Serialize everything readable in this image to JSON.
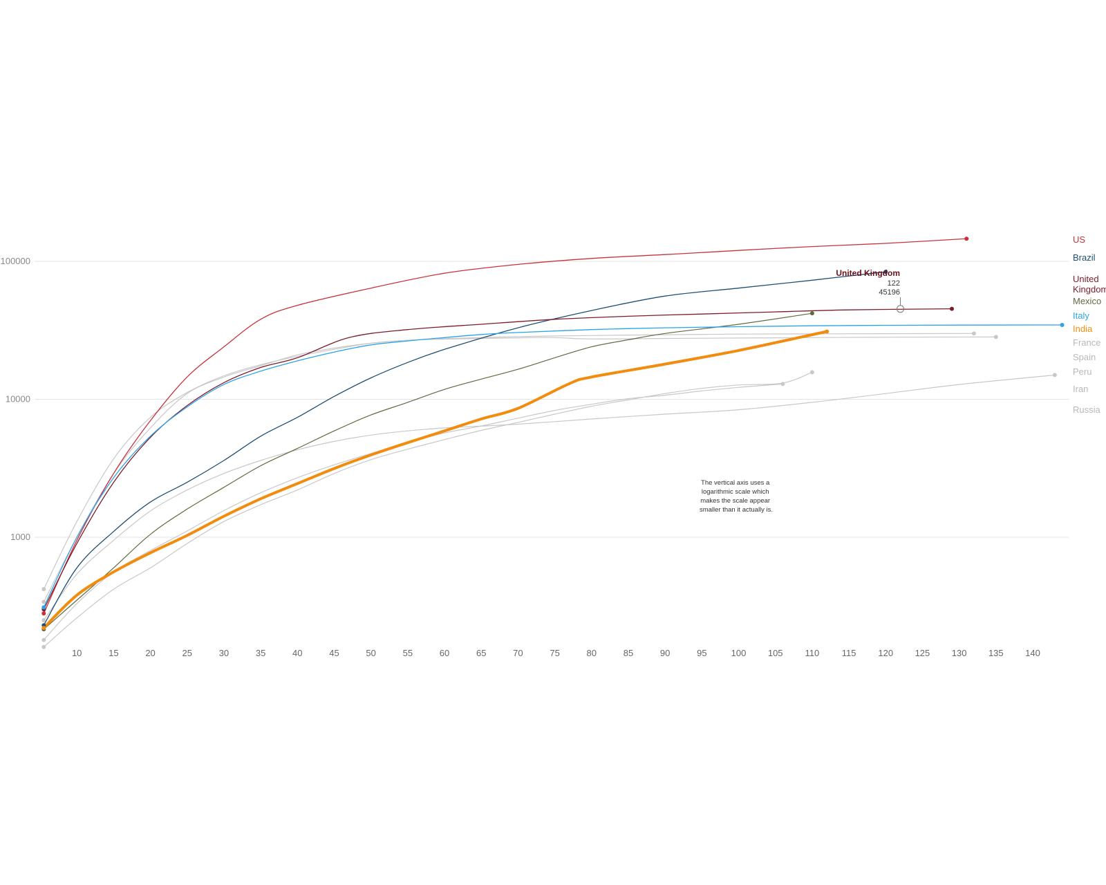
{
  "chart_data": {
    "type": "line",
    "title": "",
    "xlabel": "",
    "ylabel": "",
    "y_scale": "log",
    "ylim": [
      160,
      200000
    ],
    "xlim": [
      5,
      145
    ],
    "grid": true,
    "y_ticks": [
      "1000",
      "10000",
      "100000"
    ],
    "y_tick_values": [
      1000,
      10000,
      100000
    ],
    "x_ticks": [
      "10",
      "15",
      "20",
      "25",
      "30",
      "35",
      "40",
      "45",
      "50",
      "55",
      "60",
      "65",
      "70",
      "75",
      "80",
      "85",
      "90",
      "95",
      "100",
      "105",
      "110",
      "115",
      "120",
      "125",
      "130",
      "135",
      "140"
    ],
    "x_tick_values": [
      10,
      15,
      20,
      25,
      30,
      35,
      40,
      45,
      50,
      55,
      60,
      65,
      70,
      75,
      80,
      85,
      90,
      95,
      100,
      105,
      110,
      115,
      120,
      125,
      130,
      135,
      140
    ],
    "legend_placement": "right",
    "annotation": "The vertical axis uses a logarithmic scale which makes the scale appear smaller than it actually is.",
    "tooltip": {
      "country": "United Kingdom",
      "x": "122",
      "y": "45196",
      "x_value": 122,
      "y_value": 45196
    },
    "series": [
      {
        "name": "US",
        "color": "#c8323c",
        "highlight": true,
        "width": 1.3,
        "points": [
          [
            5.5,
            280
          ],
          [
            10,
            950
          ],
          [
            15,
            2900
          ],
          [
            20,
            7000
          ],
          [
            25,
            14500
          ],
          [
            30,
            24000
          ],
          [
            35,
            38000
          ],
          [
            40,
            48000
          ],
          [
            50,
            64000
          ],
          [
            60,
            82000
          ],
          [
            70,
            95000
          ],
          [
            80,
            105000
          ],
          [
            90,
            112000
          ],
          [
            100,
            120000
          ],
          [
            110,
            128000
          ],
          [
            120,
            135000
          ],
          [
            131,
            146000
          ]
        ]
      },
      {
        "name": "Brazil",
        "color": "#1e4e72",
        "highlight": true,
        "width": 1.3,
        "points": [
          [
            5.5,
            230
          ],
          [
            10,
            600
          ],
          [
            15,
            1100
          ],
          [
            20,
            1800
          ],
          [
            25,
            2500
          ],
          [
            30,
            3600
          ],
          [
            35,
            5400
          ],
          [
            40,
            7400
          ],
          [
            45,
            10500
          ],
          [
            50,
            14300
          ],
          [
            55,
            18500
          ],
          [
            60,
            23000
          ],
          [
            70,
            33000
          ],
          [
            80,
            44000
          ],
          [
            90,
            56000
          ],
          [
            100,
            64000
          ],
          [
            110,
            73000
          ],
          [
            120,
            84000
          ]
        ]
      },
      {
        "name": "United Kingdom",
        "color": "#7c1c2a",
        "highlight": true,
        "width": 1.3,
        "points": [
          [
            5.5,
            300
          ],
          [
            10,
            900
          ],
          [
            15,
            2500
          ],
          [
            20,
            5300
          ],
          [
            25,
            9000
          ],
          [
            30,
            13200
          ],
          [
            35,
            17000
          ],
          [
            40,
            20000
          ],
          [
            47,
            28000
          ],
          [
            55,
            32000
          ],
          [
            65,
            35000
          ],
          [
            75,
            38000
          ],
          [
            85,
            40000
          ],
          [
            95,
            41500
          ],
          [
            105,
            43000
          ],
          [
            115,
            44500
          ],
          [
            129,
            45300
          ]
        ]
      },
      {
        "name": "Mexico",
        "color": "#5f6a3e",
        "highlight": true,
        "width": 1.2,
        "points": [
          [
            5.5,
            215
          ],
          [
            10,
            350
          ],
          [
            15,
            600
          ],
          [
            20,
            1050
          ],
          [
            25,
            1600
          ],
          [
            30,
            2300
          ],
          [
            35,
            3300
          ],
          [
            40,
            4400
          ],
          [
            45,
            5900
          ],
          [
            50,
            7700
          ],
          [
            55,
            9500
          ],
          [
            60,
            11800
          ],
          [
            65,
            14000
          ],
          [
            70,
            16500
          ],
          [
            75,
            20000
          ],
          [
            80,
            24000
          ],
          [
            85,
            27000
          ],
          [
            90,
            30000
          ],
          [
            100,
            35000
          ],
          [
            110,
            42000
          ]
        ]
      },
      {
        "name": "Italy",
        "color": "#29a3e8",
        "highlight": true,
        "width": 1.3,
        "points": [
          [
            5.5,
            310
          ],
          [
            10,
            1000
          ],
          [
            15,
            2700
          ],
          [
            20,
            5400
          ],
          [
            25,
            8800
          ],
          [
            30,
            12800
          ],
          [
            35,
            16000
          ],
          [
            40,
            19000
          ],
          [
            45,
            22000
          ],
          [
            50,
            24800
          ],
          [
            55,
            26500
          ],
          [
            60,
            28000
          ],
          [
            65,
            29500
          ],
          [
            70,
            30500
          ],
          [
            80,
            32000
          ],
          [
            90,
            33000
          ],
          [
            100,
            33600
          ],
          [
            110,
            34100
          ],
          [
            120,
            34400
          ],
          [
            130,
            34500
          ],
          [
            144,
            34600
          ]
        ]
      },
      {
        "name": "India",
        "color": "#f28c0f",
        "highlight": true,
        "width": 4,
        "points": [
          [
            5.5,
            220
          ],
          [
            10,
            380
          ],
          [
            15,
            560
          ],
          [
            20,
            770
          ],
          [
            25,
            1030
          ],
          [
            30,
            1420
          ],
          [
            35,
            1900
          ],
          [
            40,
            2450
          ],
          [
            45,
            3150
          ],
          [
            50,
            3950
          ],
          [
            55,
            4850
          ],
          [
            60,
            5900
          ],
          [
            65,
            7200
          ],
          [
            70,
            8600
          ],
          [
            77,
            13000
          ],
          [
            80,
            14500
          ],
          [
            90,
            18000
          ],
          [
            100,
            22600
          ],
          [
            112,
            31000
          ]
        ]
      },
      {
        "name": "France",
        "color": "#c8c8c8",
        "highlight": false,
        "width": 1.2,
        "points": [
          [
            5.5,
            420
          ],
          [
            10,
            1300
          ],
          [
            15,
            3700
          ],
          [
            20,
            7400
          ],
          [
            25,
            11200
          ],
          [
            30,
            14800
          ],
          [
            35,
            17800
          ],
          [
            40,
            20500
          ],
          [
            45,
            23000
          ],
          [
            50,
            25500
          ],
          [
            55,
            26800
          ],
          [
            60,
            27500
          ],
          [
            70,
            28500
          ],
          [
            80,
            29000
          ],
          [
            90,
            29400
          ],
          [
            100,
            29700
          ],
          [
            110,
            29800
          ],
          [
            120,
            29900
          ],
          [
            132,
            30000
          ]
        ]
      },
      {
        "name": "Spain",
        "color": "#c8c8c8",
        "highlight": false,
        "width": 1.2,
        "points": [
          [
            5.5,
            340
          ],
          [
            10,
            1000
          ],
          [
            15,
            2900
          ],
          [
            20,
            6200
          ],
          [
            25,
            11000
          ],
          [
            30,
            14500
          ],
          [
            35,
            17500
          ],
          [
            40,
            21000
          ],
          [
            45,
            23500
          ],
          [
            50,
            25500
          ],
          [
            55,
            26800
          ],
          [
            60,
            27300
          ],
          [
            70,
            27900
          ],
          [
            75,
            28000
          ],
          [
            80,
            27400
          ],
          [
            90,
            27600
          ],
          [
            100,
            27800
          ],
          [
            110,
            28000
          ],
          [
            120,
            28200
          ],
          [
            135,
            28300
          ]
        ]
      },
      {
        "name": "Peru",
        "color": "#c8c8c8",
        "highlight": false,
        "width": 1.2,
        "points": [
          [
            5.5,
            160
          ],
          [
            10,
            260
          ],
          [
            15,
            420
          ],
          [
            20,
            600
          ],
          [
            25,
            900
          ],
          [
            30,
            1300
          ],
          [
            35,
            1720
          ],
          [
            40,
            2200
          ],
          [
            45,
            2900
          ],
          [
            50,
            3650
          ],
          [
            55,
            4350
          ],
          [
            60,
            5100
          ],
          [
            65,
            5950
          ],
          [
            70,
            6800
          ],
          [
            75,
            7800
          ],
          [
            80,
            8900
          ],
          [
            85,
            9900
          ],
          [
            90,
            11000
          ],
          [
            95,
            12000
          ],
          [
            100,
            12700
          ],
          [
            106,
            13100
          ],
          [
            110,
            15700
          ]
        ]
      },
      {
        "name": "Iran",
        "color": "#c8c8c8",
        "highlight": false,
        "width": 1.2,
        "points": [
          [
            5.5,
            250
          ],
          [
            10,
            540
          ],
          [
            15,
            950
          ],
          [
            20,
            1550
          ],
          [
            25,
            2200
          ],
          [
            30,
            2900
          ],
          [
            35,
            3600
          ],
          [
            40,
            4300
          ],
          [
            45,
            4950
          ],
          [
            50,
            5500
          ],
          [
            55,
            5900
          ],
          [
            60,
            6200
          ],
          [
            70,
            6600
          ],
          [
            80,
            7200
          ],
          [
            90,
            7800
          ],
          [
            100,
            8400
          ],
          [
            110,
            9500
          ],
          [
            120,
            11000
          ],
          [
            130,
            12800
          ],
          [
            143,
            15000
          ]
        ]
      },
      {
        "name": "Russia",
        "color": "#c8c8c8",
        "highlight": false,
        "width": 1.2,
        "points": [
          [
            5.5,
            180
          ],
          [
            10,
            330
          ],
          [
            15,
            560
          ],
          [
            20,
            800
          ],
          [
            25,
            1110
          ],
          [
            30,
            1560
          ],
          [
            35,
            2100
          ],
          [
            40,
            2700
          ],
          [
            45,
            3350
          ],
          [
            50,
            4050
          ],
          [
            55,
            4850
          ],
          [
            60,
            5700
          ],
          [
            65,
            6400
          ],
          [
            70,
            7300
          ],
          [
            75,
            8300
          ],
          [
            80,
            9200
          ],
          [
            85,
            10100
          ],
          [
            90,
            10700
          ],
          [
            95,
            11500
          ],
          [
            100,
            12200
          ],
          [
            106,
            12900
          ]
        ]
      }
    ]
  }
}
